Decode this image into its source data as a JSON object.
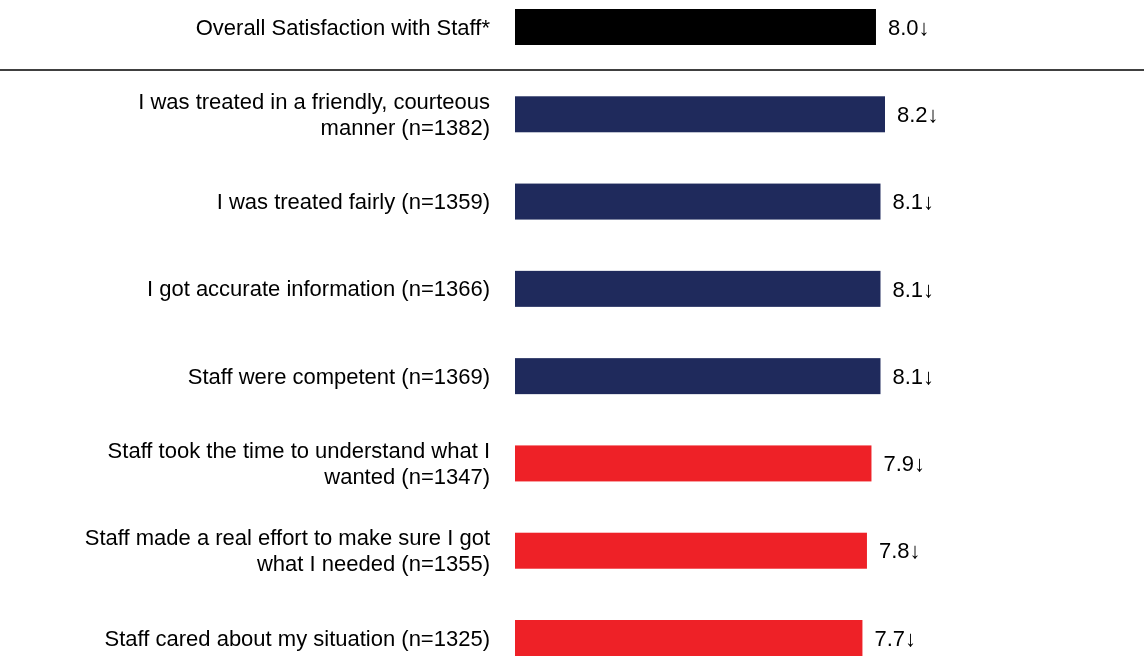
{
  "chart_data": {
    "type": "bar",
    "orientation": "horizontal",
    "categories": [
      "Overall Satisfaction with Staff*",
      "I was treated in a friendly, courteous manner (n=1382)",
      "I was treated fairly (n=1359)",
      "I got accurate information (n=1366)",
      "Staff were competent (n=1369)",
      "Staff took the time to understand what I wanted (n=1347)",
      "Staff made a real effort to make sure I got what I needed (n=1355)",
      "Staff cared about my situation (n=1325)"
    ],
    "values": [
      8.0,
      8.2,
      8.1,
      8.1,
      8.1,
      7.9,
      7.8,
      7.7
    ],
    "value_labels": [
      "8.0↓",
      "8.2↓",
      "8.1↓",
      "8.1↓",
      "8.1↓",
      "7.9↓",
      "7.8↓",
      "7.7↓"
    ],
    "colors": [
      "#000000",
      "#1f2a5c",
      "#1f2a5c",
      "#1f2a5c",
      "#1f2a5c",
      "#ee2127",
      "#ee2127",
      "#ee2127"
    ],
    "tick_labels": "y"
  }
}
